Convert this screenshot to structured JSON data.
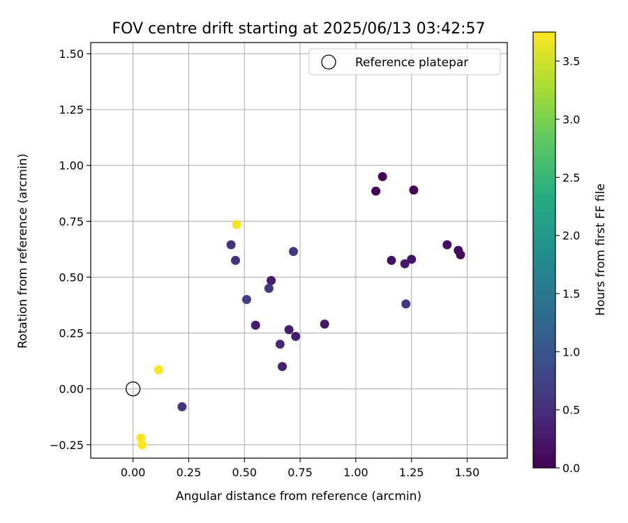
{
  "chart_data": {
    "type": "scatter",
    "title": "FOV centre drift starting at 2025/06/13 03:42:57",
    "xlabel": "Angular distance from reference (arcmin)",
    "ylabel": "Rotation from reference (arcmin)",
    "xlim": [
      -0.19,
      1.68
    ],
    "ylim": [
      -0.31,
      1.55
    ],
    "x_ticks": [
      0.0,
      0.25,
      0.5,
      0.75,
      1.0,
      1.25,
      1.5
    ],
    "x_tick_labels": [
      "0.00",
      "0.25",
      "0.50",
      "0.75",
      "1.00",
      "1.25",
      "1.50"
    ],
    "y_ticks": [
      -0.25,
      0.0,
      0.25,
      0.5,
      0.75,
      1.0,
      1.25,
      1.5
    ],
    "y_tick_labels": [
      "−0.25",
      "0.00",
      "0.25",
      "0.50",
      "0.75",
      "1.00",
      "1.25",
      "1.50"
    ],
    "grid": true,
    "legend": {
      "placement": "upper right",
      "entries": [
        {
          "label": "Reference platepar",
          "marker": "open-circle",
          "x": 0.0,
          "y": 0.0
        }
      ]
    },
    "colorbar": {
      "label": "Hours from first FF file",
      "colormap": "viridis",
      "range": [
        0.0,
        3.75
      ],
      "ticks": [
        0.0,
        0.5,
        1.0,
        1.5,
        2.0,
        2.5,
        3.0,
        3.5
      ],
      "tick_labels": [
        "0.0",
        "0.5",
        "1.0",
        "1.5",
        "2.0",
        "2.5",
        "3.0",
        "3.5"
      ]
    },
    "points": [
      {
        "x": 1.12,
        "y": 0.95,
        "hours": 0.02
      },
      {
        "x": 1.09,
        "y": 0.885,
        "hours": 0.03
      },
      {
        "x": 1.26,
        "y": 0.89,
        "hours": 0.05
      },
      {
        "x": 1.47,
        "y": 0.6,
        "hours": 0.08
      },
      {
        "x": 1.46,
        "y": 0.62,
        "hours": 0.12
      },
      {
        "x": 1.41,
        "y": 0.645,
        "hours": 0.15
      },
      {
        "x": 1.16,
        "y": 0.575,
        "hours": 0.18
      },
      {
        "x": 1.25,
        "y": 0.58,
        "hours": 0.2
      },
      {
        "x": 1.22,
        "y": 0.56,
        "hours": 0.22
      },
      {
        "x": 0.86,
        "y": 0.29,
        "hours": 0.25
      },
      {
        "x": 0.62,
        "y": 0.485,
        "hours": 0.28
      },
      {
        "x": 0.55,
        "y": 0.285,
        "hours": 0.3
      },
      {
        "x": 0.7,
        "y": 0.265,
        "hours": 0.3
      },
      {
        "x": 0.73,
        "y": 0.235,
        "hours": 0.32
      },
      {
        "x": 0.67,
        "y": 0.1,
        "hours": 0.35
      },
      {
        "x": 0.66,
        "y": 0.2,
        "hours": 0.45
      },
      {
        "x": 0.44,
        "y": 0.645,
        "hours": 0.55
      },
      {
        "x": 0.46,
        "y": 0.575,
        "hours": 0.55
      },
      {
        "x": 0.22,
        "y": -0.08,
        "hours": 0.58
      },
      {
        "x": 0.61,
        "y": 0.45,
        "hours": 0.6
      },
      {
        "x": 0.72,
        "y": 0.615,
        "hours": 0.62
      },
      {
        "x": 1.225,
        "y": 0.38,
        "hours": 0.62
      },
      {
        "x": 0.51,
        "y": 0.4,
        "hours": 0.7
      },
      {
        "x": 0.465,
        "y": 0.735,
        "hours": 3.7
      },
      {
        "x": 0.115,
        "y": 0.085,
        "hours": 3.72
      },
      {
        "x": 0.035,
        "y": -0.22,
        "hours": 3.73
      },
      {
        "x": 0.04,
        "y": -0.25,
        "hours": 3.75
      }
    ]
  }
}
